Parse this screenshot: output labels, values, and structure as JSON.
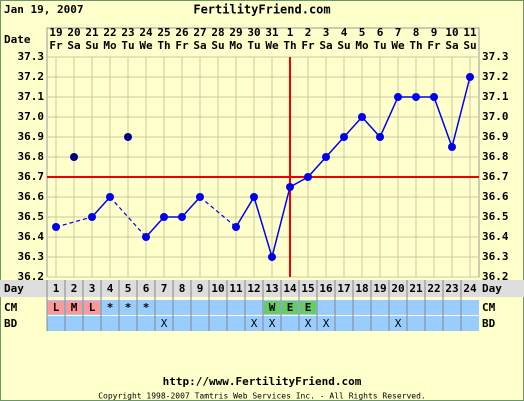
{
  "header": {
    "date": "Jan 19, 2007",
    "site": "FertilityFriend.com"
  },
  "chart_data": {
    "type": "line",
    "row_labels": {
      "date": "Date",
      "day": "Day",
      "cm": "CM",
      "bd": "BD"
    },
    "dates": [
      19,
      20,
      21,
      22,
      23,
      24,
      25,
      26,
      27,
      28,
      29,
      30,
      31,
      1,
      2,
      3,
      4,
      5,
      6,
      7,
      8,
      9,
      10,
      11
    ],
    "weekdays": [
      "Fr",
      "Sa",
      "Su",
      "Mo",
      "Tu",
      "We",
      "Th",
      "Fr",
      "Sa",
      "Su",
      "Mo",
      "Tu",
      "We",
      "Th",
      "Fr",
      "Sa",
      "Su",
      "Mo",
      "Tu",
      "We",
      "Th",
      "Fr",
      "Sa",
      "Su"
    ],
    "categories": [
      1,
      2,
      3,
      4,
      5,
      6,
      7,
      8,
      9,
      10,
      11,
      12,
      13,
      14,
      15,
      16,
      17,
      18,
      19,
      20,
      21,
      22,
      23,
      24
    ],
    "series": [
      {
        "color": "#0000ee",
        "values": [
          36.45,
          null,
          36.5,
          36.6,
          null,
          36.4,
          36.5,
          36.5,
          36.6,
          null,
          36.45,
          36.6,
          36.3,
          36.65,
          36.7,
          36.8,
          36.9,
          37.0,
          36.9,
          37.1,
          37.1,
          37.1,
          36.85,
          37.2
        ]
      },
      {
        "color": "#000080",
        "values": [
          null,
          36.8,
          null,
          null,
          36.9,
          null,
          null,
          null,
          null,
          null,
          null,
          null,
          null,
          null,
          null,
          null,
          null,
          null,
          null,
          null,
          null,
          null,
          null,
          null
        ]
      }
    ],
    "coverline": {
      "value": 36.7,
      "color": "#ee0000"
    },
    "ovulation_day": 14,
    "ylim": [
      36.2,
      37.3
    ],
    "yticks": [
      36.2,
      36.3,
      36.4,
      36.5,
      36.6,
      36.7,
      36.8,
      36.9,
      {
        "value": 37,
        "label": "37.0"
      },
      37.1,
      37.2,
      37.3
    ],
    "grid": true,
    "cm": [
      "L",
      "M",
      "L",
      "*",
      "*",
      "*",
      null,
      null,
      null,
      null,
      null,
      null,
      "W",
      "E",
      "E",
      null,
      null,
      null,
      null,
      null,
      null,
      null,
      null,
      null
    ],
    "cm_colors": [
      "#ff9999",
      "#ff9999",
      "#ff9999",
      null,
      null,
      null,
      null,
      null,
      null,
      null,
      null,
      null,
      "#66cc66",
      "#66cc66",
      "#66cc66",
      null,
      null,
      null,
      null,
      null,
      null,
      null,
      null,
      null
    ],
    "bd": [
      null,
      null,
      null,
      null,
      null,
      null,
      "X",
      null,
      null,
      null,
      null,
      "X",
      "X",
      null,
      "X",
      "X",
      null,
      null,
      null,
      "X",
      null,
      null,
      null,
      null
    ]
  },
  "footer": {
    "url": "http://www.FertilityFriend.com",
    "copyright": "Copyright 1998-2007 Tamtris Web Services Inc. - All Rights Reserved."
  }
}
